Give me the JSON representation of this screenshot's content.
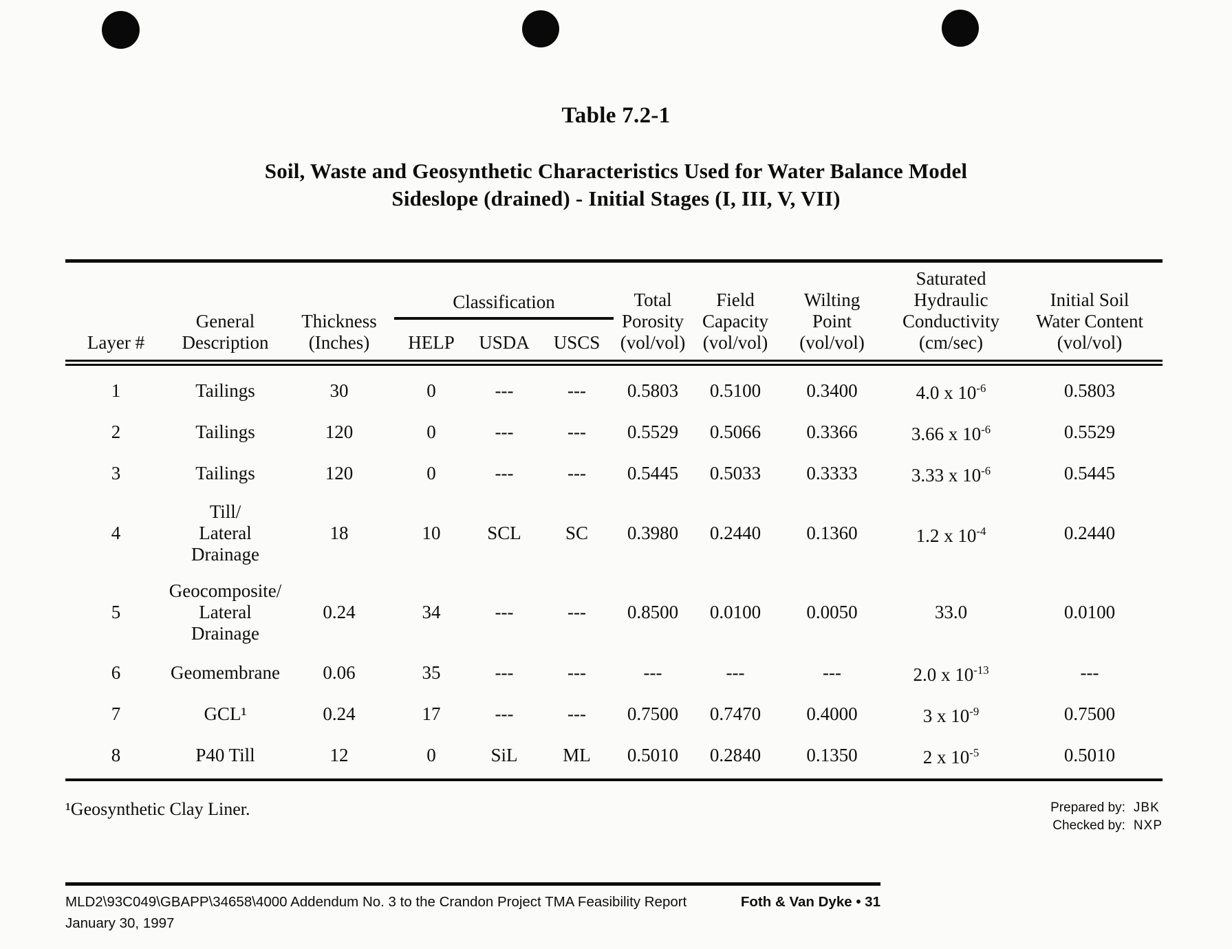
{
  "page": {
    "table_label": "Table 7.2-1",
    "title_line1": "Soil, Waste and Geosynthetic Characteristics Used for Water Balance Model",
    "title_line2": "Sideslope (drained) - Initial Stages (I, III, V, VII)"
  },
  "table": {
    "headers": {
      "layer": "Layer #",
      "description": [
        "General",
        "Description"
      ],
      "thickness": [
        "Thickness",
        "(Inches)"
      ],
      "classification_group": "Classification",
      "help": "HELP",
      "usda": "USDA",
      "uscs": "USCS",
      "porosity": [
        "Total",
        "Porosity",
        "(vol/vol)"
      ],
      "field_capacity": [
        "Field",
        "Capacity",
        "(vol/vol)"
      ],
      "wilting_point": [
        "Wilting",
        "Point",
        "(vol/vol)"
      ],
      "conductivity": [
        "Saturated",
        "Hydraulic",
        "Conductivity",
        "(cm/sec)"
      ],
      "water_content": [
        "Initial Soil",
        "Water Content",
        "(vol/vol)"
      ]
    },
    "rows": [
      {
        "layer": "1",
        "description": [
          "Tailings"
        ],
        "thickness": "30",
        "help": "0",
        "usda": "---",
        "uscs": "---",
        "porosity": "0.5803",
        "field_capacity": "0.5100",
        "wilting_point": "0.3400",
        "k_base": "4.0 x 10",
        "k_exp": "-6",
        "water_content": "0.5803"
      },
      {
        "layer": "2",
        "description": [
          "Tailings"
        ],
        "thickness": "120",
        "help": "0",
        "usda": "---",
        "uscs": "---",
        "porosity": "0.5529",
        "field_capacity": "0.5066",
        "wilting_point": "0.3366",
        "k_base": "3.66 x 10",
        "k_exp": "-6",
        "water_content": "0.5529"
      },
      {
        "layer": "3",
        "description": [
          "Tailings"
        ],
        "thickness": "120",
        "help": "0",
        "usda": "---",
        "uscs": "---",
        "porosity": "0.5445",
        "field_capacity": "0.5033",
        "wilting_point": "0.3333",
        "k_base": "3.33 x 10",
        "k_exp": "-6",
        "water_content": "0.5445"
      },
      {
        "layer": "4",
        "description": [
          "Till/",
          "Lateral",
          "Drainage"
        ],
        "thickness": "18",
        "help": "10",
        "usda": "SCL",
        "uscs": "SC",
        "porosity": "0.3980",
        "field_capacity": "0.2440",
        "wilting_point": "0.1360",
        "k_base": "1.2 x 10",
        "k_exp": "-4",
        "water_content": "0.2440"
      },
      {
        "layer": "5",
        "description": [
          "Geocomposite/",
          "Lateral",
          "Drainage"
        ],
        "thickness": "0.24",
        "help": "34",
        "usda": "---",
        "uscs": "---",
        "porosity": "0.8500",
        "field_capacity": "0.0100",
        "wilting_point": "0.0050",
        "k_base": "33.0",
        "k_exp": "",
        "water_content": "0.0100"
      },
      {
        "layer": "6",
        "description": [
          "Geomembrane"
        ],
        "thickness": "0.06",
        "help": "35",
        "usda": "---",
        "uscs": "---",
        "porosity": "---",
        "field_capacity": "---",
        "wilting_point": "---",
        "k_base": "2.0 x 10",
        "k_exp": "-13",
        "water_content": "---"
      },
      {
        "layer": "7",
        "description": [
          "GCL¹"
        ],
        "thickness": "0.24",
        "help": "17",
        "usda": "---",
        "uscs": "---",
        "porosity": "0.7500",
        "field_capacity": "0.7470",
        "wilting_point": "0.4000",
        "k_base": "3 x 10",
        "k_exp": "-9",
        "water_content": "0.7500"
      },
      {
        "layer": "8",
        "description": [
          "P40 Till"
        ],
        "thickness": "12",
        "help": "0",
        "usda": "SiL",
        "uscs": "ML",
        "porosity": "0.5010",
        "field_capacity": "0.2840",
        "wilting_point": "0.1350",
        "k_base": "2 x 10",
        "k_exp": "-5",
        "water_content": "0.5010"
      }
    ]
  },
  "footnote": "¹Geosynthetic Clay Liner.",
  "signoff": {
    "prepared_label": "Prepared by:",
    "prepared_value": "JBK",
    "checked_label": "Checked by:",
    "checked_value": "NXP"
  },
  "footer": {
    "line1_left": "MLD2\\93C049\\GBAPP\\34658\\4000  Addendum No. 3 to the Crandon Project TMA Feasibility Report",
    "line2_left": "January 30, 1997",
    "right": "Foth & Van Dyke • 31"
  }
}
